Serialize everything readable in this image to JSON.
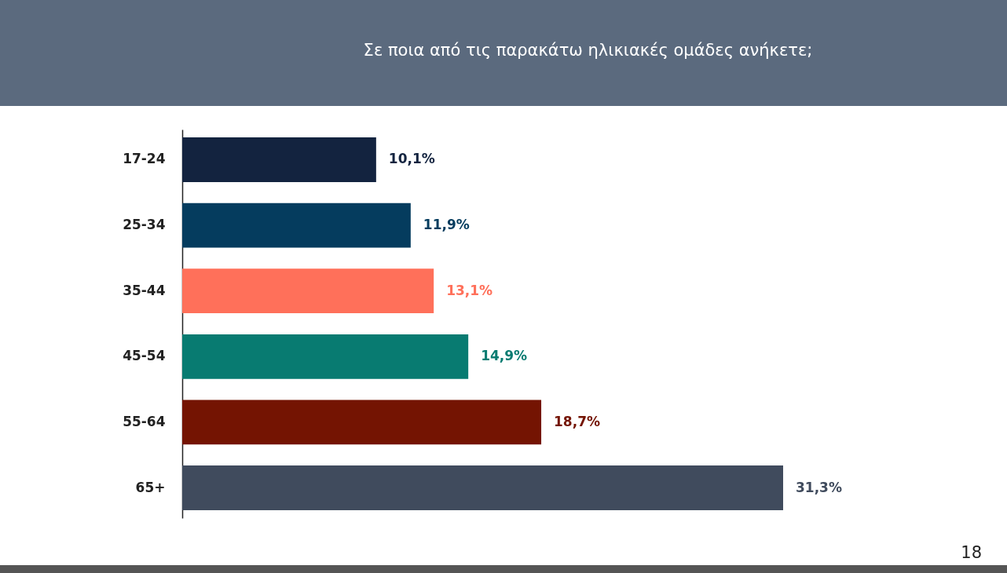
{
  "chart_data": {
    "type": "bar",
    "orientation": "horizontal",
    "title": "Σε ποια από τις παρακάτω ηλικιακές ομάδες ανήκετε;",
    "categories": [
      "17-24",
      "25-34",
      "35-44",
      "45-54",
      "55-64",
      "65+"
    ],
    "values": [
      10.1,
      11.9,
      13.1,
      14.9,
      18.7,
      31.3
    ],
    "colors": [
      "#13233f",
      "#053c5e",
      "#ff705a",
      "#087b71",
      "#741402",
      "#404b5d"
    ],
    "value_labels": [
      "10,1%",
      "11,9%",
      "13,1%",
      "14,9%",
      "18,7%",
      "31,3%"
    ],
    "annotations": [
      "18"
    ]
  }
}
